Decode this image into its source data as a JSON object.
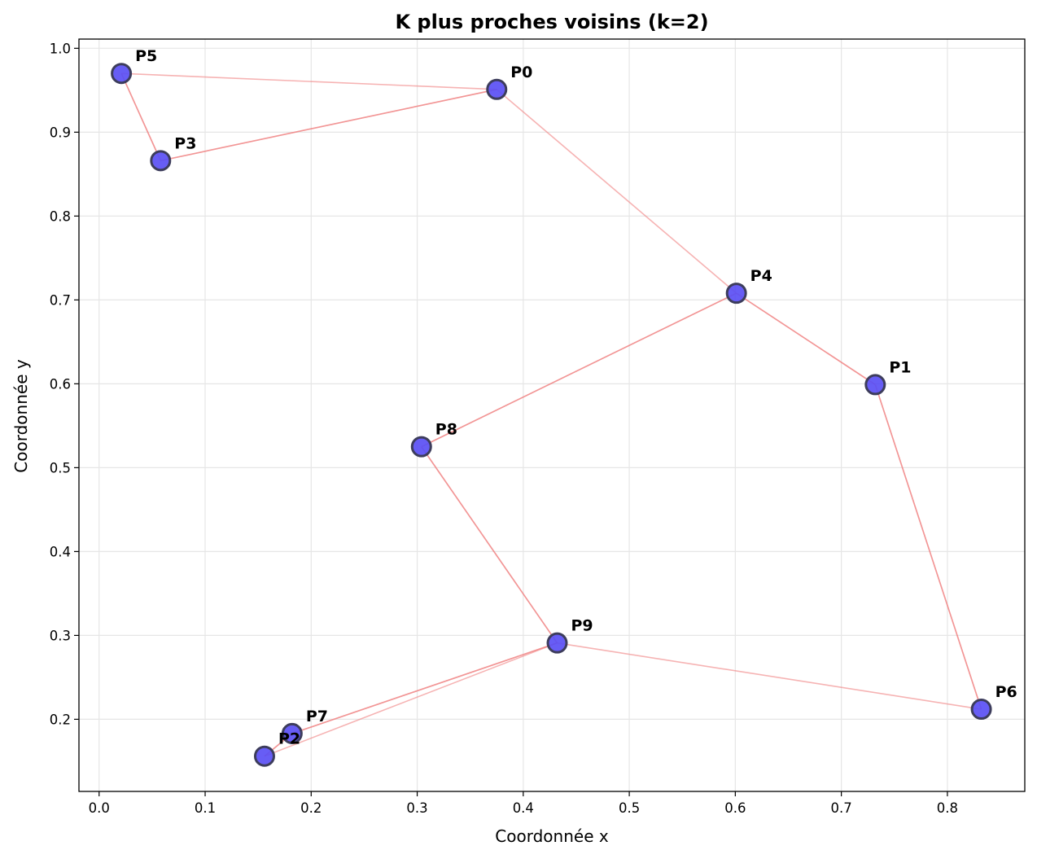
{
  "chart_data": {
    "type": "scatter",
    "title": "K plus proches voisins (k=2)",
    "xlabel": "Coordonnée x",
    "ylabel": "Coordonnée y",
    "xlim": [
      -0.019,
      0.873
    ],
    "ylim": [
      0.114,
      1.011
    ],
    "xticks": [
      0.0,
      0.1,
      0.2,
      0.3,
      0.4,
      0.5,
      0.6,
      0.7,
      0.8
    ],
    "xtick_labels": [
      "0.0",
      "0.1",
      "0.2",
      "0.3",
      "0.4",
      "0.5",
      "0.6",
      "0.7",
      "0.8"
    ],
    "yticks": [
      0.2,
      0.3,
      0.4,
      0.5,
      0.6,
      0.7,
      0.8,
      0.9,
      1.0
    ],
    "ytick_labels": [
      "0.2",
      "0.3",
      "0.4",
      "0.5",
      "0.6",
      "0.7",
      "0.8",
      "0.9",
      "1.0"
    ],
    "grid": true,
    "points": [
      {
        "label": "P0",
        "x": 0.375,
        "y": 0.951
      },
      {
        "label": "P1",
        "x": 0.732,
        "y": 0.599
      },
      {
        "label": "P2",
        "x": 0.156,
        "y": 0.156
      },
      {
        "label": "P3",
        "x": 0.058,
        "y": 0.866
      },
      {
        "label": "P4",
        "x": 0.601,
        "y": 0.708
      },
      {
        "label": "P5",
        "x": 0.021,
        "y": 0.97
      },
      {
        "label": "P6",
        "x": 0.832,
        "y": 0.212
      },
      {
        "label": "P7",
        "x": 0.182,
        "y": 0.183
      },
      {
        "label": "P8",
        "x": 0.304,
        "y": 0.525
      },
      {
        "label": "P9",
        "x": 0.432,
        "y": 0.291
      }
    ],
    "neighbor_edges": [
      {
        "from": "P0",
        "to": "P3"
      },
      {
        "from": "P0",
        "to": "P4"
      },
      {
        "from": "P1",
        "to": "P4"
      },
      {
        "from": "P1",
        "to": "P6"
      },
      {
        "from": "P2",
        "to": "P7"
      },
      {
        "from": "P2",
        "to": "P9"
      },
      {
        "from": "P3",
        "to": "P5"
      },
      {
        "from": "P3",
        "to": "P0"
      },
      {
        "from": "P4",
        "to": "P1"
      },
      {
        "from": "P4",
        "to": "P8"
      },
      {
        "from": "P5",
        "to": "P3"
      },
      {
        "from": "P5",
        "to": "P0"
      },
      {
        "from": "P6",
        "to": "P1"
      },
      {
        "from": "P6",
        "to": "P9"
      },
      {
        "from": "P7",
        "to": "P2"
      },
      {
        "from": "P7",
        "to": "P9"
      },
      {
        "from": "P8",
        "to": "P9"
      },
      {
        "from": "P8",
        "to": "P4"
      },
      {
        "from": "P9",
        "to": "P8"
      },
      {
        "from": "P9",
        "to": "P7"
      }
    ],
    "colors": {
      "point_fill": "#5a4ff4",
      "point_edge": "#3d3d5c",
      "edge": "#f08080",
      "grid": "#e6e6e6",
      "axes": "#000000"
    }
  }
}
